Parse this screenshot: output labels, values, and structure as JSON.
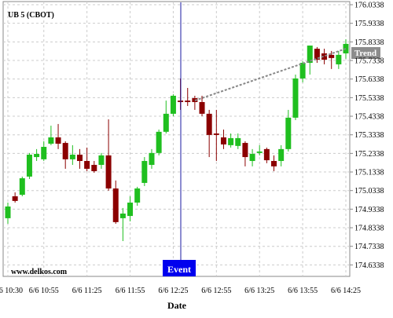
{
  "chart_data": {
    "type": "candlestick",
    "title": "UB 5 (CBOT)",
    "x_label": "Date",
    "watermark": "www.delkos.com",
    "event_label": "Event",
    "trend_label": "Trend",
    "categories": [
      "6/6 10:30",
      null,
      null,
      null,
      null,
      "6/6 10:55",
      null,
      null,
      null,
      null,
      null,
      "6/6 11:25",
      null,
      null,
      null,
      null,
      null,
      "6/6 11:55",
      null,
      null,
      null,
      null,
      null,
      "6/6 12:25",
      null,
      null,
      null,
      null,
      null,
      "6/6 12:55",
      null,
      null,
      null,
      null,
      null,
      "6/6 13:25",
      null,
      null,
      null,
      null,
      null,
      "6/6 13:55",
      null,
      null,
      null,
      null,
      null,
      "6/6 14:25"
    ],
    "open": [
      174.885,
      175.003,
      175.011,
      175.109,
      175.214,
      175.202,
      175.286,
      175.32,
      175.29,
      175.202,
      175.227,
      175.193,
      175.172,
      175.172,
      175.223,
      175.045,
      174.885,
      174.897,
      174.969,
      175.075,
      175.172,
      175.236,
      175.35,
      175.447,
      175.518,
      175.518,
      175.531,
      175.51,
      175.447,
      175.341,
      175.32,
      175.278,
      175.274,
      175.29,
      175.193,
      175.236,
      175.257,
      175.193,
      175.193,
      175.257,
      175.426,
      175.637,
      175.721,
      175.797,
      175.772,
      175.764,
      175.713,
      175.772
    ],
    "high": [
      174.969,
      175.024,
      175.109,
      175.236,
      175.257,
      175.299,
      175.383,
      175.392,
      175.299,
      175.278,
      175.257,
      175.265,
      175.193,
      175.236,
      175.417,
      175.088,
      174.94,
      175.003,
      175.054,
      175.214,
      175.257,
      175.362,
      175.518,
      175.552,
      175.637,
      175.586,
      175.544,
      175.544,
      175.468,
      175.468,
      175.362,
      175.341,
      175.341,
      175.299,
      175.257,
      175.278,
      175.265,
      175.223,
      175.278,
      175.468,
      175.658,
      175.73,
      175.814,
      175.806,
      175.797,
      175.785,
      175.785,
      175.848
    ],
    "low": [
      174.855,
      174.969,
      175.003,
      175.096,
      175.193,
      175.193,
      175.278,
      175.257,
      175.151,
      175.172,
      175.151,
      175.138,
      175.13,
      175.151,
      175.033,
      174.855,
      174.762,
      174.868,
      174.952,
      175.058,
      175.151,
      175.223,
      175.341,
      175.434,
      175.468,
      175.489,
      175.468,
      175.434,
      175.214,
      175.193,
      175.257,
      175.265,
      175.257,
      175.164,
      175.164,
      175.223,
      175.181,
      175.138,
      175.164,
      175.244,
      175.413,
      175.616,
      175.658,
      175.721,
      175.713,
      175.688,
      175.688,
      175.743
    ],
    "close": [
      174.948,
      174.978,
      175.1,
      175.227,
      175.231,
      175.269,
      175.32,
      175.286,
      175.202,
      175.227,
      175.193,
      175.151,
      175.138,
      175.223,
      175.045,
      174.864,
      174.91,
      174.969,
      175.045,
      175.193,
      175.236,
      175.35,
      175.447,
      175.544,
      175.51,
      175.51,
      175.51,
      175.447,
      175.333,
      175.333,
      175.282,
      175.316,
      175.316,
      175.214,
      175.231,
      175.244,
      175.197,
      175.164,
      175.257,
      175.426,
      175.637,
      175.721,
      175.814,
      175.738,
      175.738,
      175.747,
      175.764,
      175.823
    ],
    "up_color": "#1fbf1f",
    "down_color": "#8b0000",
    "ylim": [
      174.572,
      176.0592
    ],
    "yticks": [
      174.6338,
      174.7338,
      174.8338,
      174.9338,
      175.0338,
      175.1338,
      175.2338,
      175.3338,
      175.4338,
      175.5338,
      175.6338,
      175.7338,
      175.8338,
      175.9338,
      176.0338
    ],
    "grid": true
  }
}
